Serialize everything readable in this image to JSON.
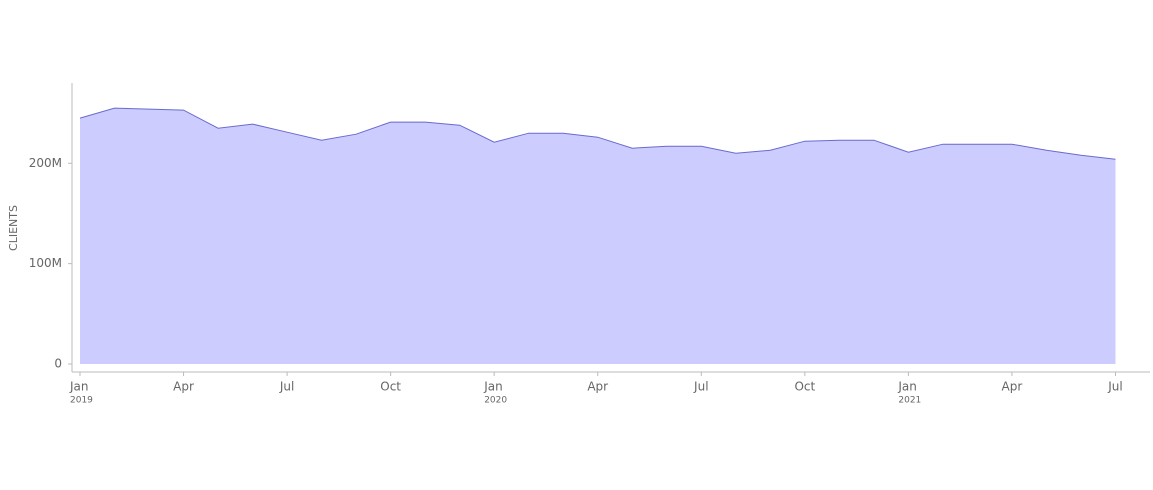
{
  "chart_data": {
    "type": "area",
    "y_label": "CLIENTS",
    "x": [
      "2019-01",
      "2019-02",
      "2019-03",
      "2019-04",
      "2019-05",
      "2019-06",
      "2019-07",
      "2019-08",
      "2019-09",
      "2019-10",
      "2019-11",
      "2019-12",
      "2020-01",
      "2020-02",
      "2020-03",
      "2020-04",
      "2020-05",
      "2020-06",
      "2020-07",
      "2020-08",
      "2020-09",
      "2020-10",
      "2020-11",
      "2020-12",
      "2021-01",
      "2021-02",
      "2021-03",
      "2021-04",
      "2021-05",
      "2021-06",
      "2021-07"
    ],
    "values": [
      245000000,
      255000000,
      254000000,
      253000000,
      235000000,
      239000000,
      231000000,
      223000000,
      229000000,
      241000000,
      241000000,
      238000000,
      221000000,
      230000000,
      230000000,
      226000000,
      215000000,
      217000000,
      217000000,
      210000000,
      213000000,
      222000000,
      223000000,
      223000000,
      211000000,
      219000000,
      219000000,
      219000000,
      213000000,
      208000000,
      204000000
    ],
    "fill": "#ccccff",
    "color": "#6a6acf",
    "xlim": [
      "2019-01",
      "2021-08"
    ],
    "xticks": [
      {
        "value": "2019-01",
        "label": "Jan",
        "year": "2019"
      },
      {
        "value": "2019-04",
        "label": "Apr"
      },
      {
        "value": "2019-07",
        "label": "Jul"
      },
      {
        "value": "2019-10",
        "label": "Oct"
      },
      {
        "value": "2020-01",
        "label": "Jan",
        "year": "2020"
      },
      {
        "value": "2020-04",
        "label": "Apr"
      },
      {
        "value": "2020-07",
        "label": "Jul"
      },
      {
        "value": "2020-10",
        "label": "Oct"
      },
      {
        "value": "2021-01",
        "label": "Jan",
        "year": "2021"
      },
      {
        "value": "2021-04",
        "label": "Apr"
      },
      {
        "value": "2021-07",
        "label": "Jul"
      }
    ],
    "ylim": [
      0,
      280000000
    ],
    "yticks": [
      0,
      {
        "value": 100000000,
        "label": "100M"
      },
      {
        "value": 200000000,
        "label": "200M"
      }
    ]
  }
}
